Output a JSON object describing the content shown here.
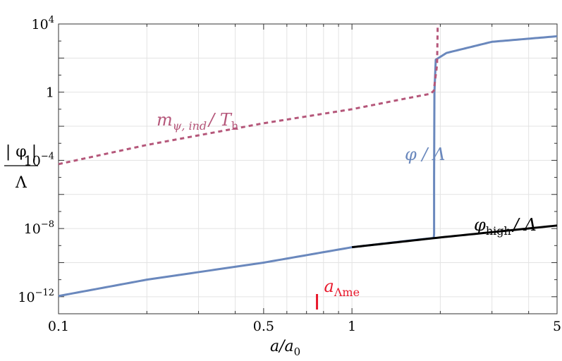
{
  "chart_data": {
    "type": "line",
    "xscale": "log",
    "yscale": "log",
    "xlim": [
      0.1,
      5
    ],
    "ylim": [
      1e-13,
      10000.0
    ],
    "grid": true,
    "xlabel": {
      "main": "a/a",
      "sub": "0"
    },
    "ylabel": {
      "numerator": "| φ |",
      "denominator": "Λ"
    },
    "xticks": [
      {
        "value": 0.1,
        "label": "0.1"
      },
      {
        "value": 0.5,
        "label": "0.5"
      },
      {
        "value": 1,
        "label": "1"
      },
      {
        "value": 5,
        "label": "5"
      }
    ],
    "yticks": [
      {
        "value": 10000.0,
        "base": "10",
        "exp": "4"
      },
      {
        "value": 1,
        "base": "1",
        "exp": ""
      },
      {
        "value": 0.0001,
        "base": "10",
        "exp": "−4"
      },
      {
        "value": 1e-08,
        "base": "10",
        "exp": "−8"
      },
      {
        "value": 1e-12,
        "base": "10",
        "exp": "−12"
      }
    ],
    "series": [
      {
        "label_main": "φ / Λ",
        "color": "#6a88bd",
        "style": "solid",
        "points": [
          [
            0.1,
            1.1e-12
          ],
          [
            0.2,
            1e-11
          ],
          [
            0.5,
            1e-10
          ],
          [
            1.0,
            8e-10
          ],
          [
            1.5,
            1.8e-09
          ],
          [
            1.9,
            2.8e-09
          ],
          [
            1.905,
            5e-09
          ],
          [
            1.905,
            1e-05
          ],
          [
            1.91,
            1.0
          ],
          [
            1.93,
            80
          ],
          [
            2.1,
            200
          ],
          [
            3.0,
            900
          ],
          [
            5.0,
            1900.0
          ]
        ]
      },
      {
        "label_main": "m",
        "label_sub": "ψ, ind",
        "label_rest": "/ T",
        "label_rest_sub": "h",
        "color": "#b5577a",
        "style": "dashed",
        "points": [
          [
            0.1,
            6e-05
          ],
          [
            0.2,
            0.0008
          ],
          [
            0.5,
            0.015
          ],
          [
            1.0,
            0.1
          ],
          [
            1.5,
            0.4
          ],
          [
            1.85,
            0.8
          ],
          [
            1.9,
            1.2
          ],
          [
            1.95,
            40
          ],
          [
            1.96,
            10000.0
          ]
        ]
      },
      {
        "label_main": "φ",
        "label_sub": "high",
        "label_rest": "/ Λ",
        "color": "#000000",
        "style": "solid",
        "points": [
          [
            1.0,
            8e-10
          ],
          [
            2.0,
            3e-09
          ],
          [
            5.0,
            1.5e-08
          ]
        ]
      }
    ],
    "annotations": [
      {
        "main": "a",
        "sub": "Λme",
        "x": 0.76,
        "color": "#e8192c"
      }
    ]
  }
}
